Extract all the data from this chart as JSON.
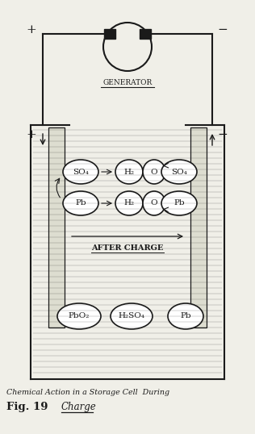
{
  "bg_color": "#f0efe8",
  "line_color": "#1a1a1a",
  "title_line1": "Chemical Action in a Storage Cell  During",
  "title_line2": "Charge",
  "fig_label": "Fig. 19",
  "generator_label": "GENERATOR",
  "after_charge_label": "AFTER CHARGE",
  "figsize": [
    3.16,
    5.38
  ],
  "dpi": 100
}
